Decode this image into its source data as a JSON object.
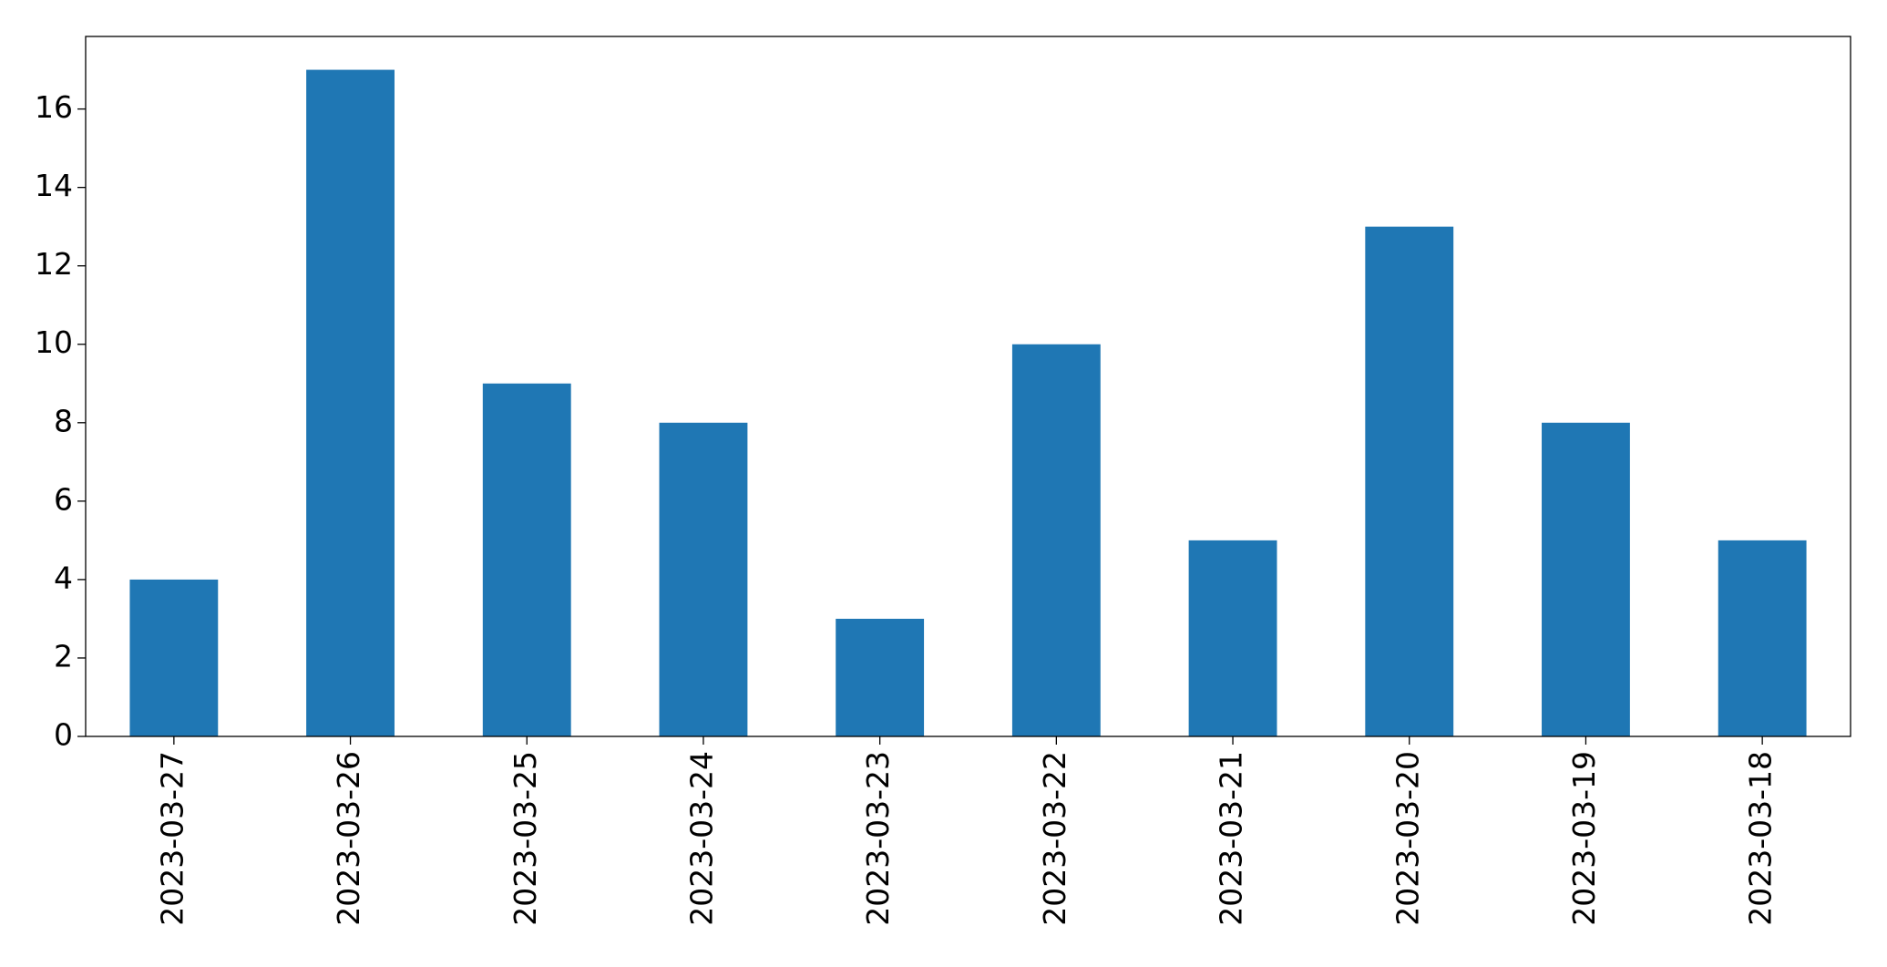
{
  "chart_data": {
    "type": "bar",
    "categories": [
      "2023-03-27",
      "2023-03-26",
      "2023-03-25",
      "2023-03-24",
      "2023-03-23",
      "2023-03-22",
      "2023-03-21",
      "2023-03-20",
      "2023-03-19",
      "2023-03-18"
    ],
    "values": [
      4,
      17,
      9,
      8,
      3,
      10,
      5,
      13,
      8,
      5
    ],
    "color": "#1f77b4",
    "ylim": [
      0,
      17.85
    ],
    "yticks": [
      0,
      2,
      4,
      6,
      8,
      10,
      12,
      14,
      16
    ],
    "grid": false
  }
}
